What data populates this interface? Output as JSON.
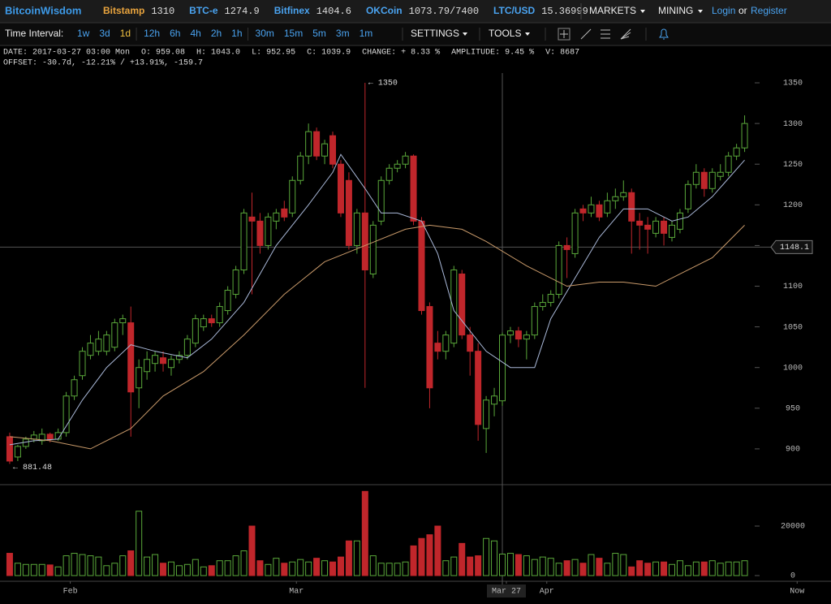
{
  "header": {
    "brand": "BitcoinWisdom",
    "tickers": [
      {
        "name": "Bitstamp",
        "price": "1310"
      },
      {
        "name": "BTC-e",
        "price": "1274.9"
      },
      {
        "name": "Bitfinex",
        "price": "1404.6"
      },
      {
        "name": "OKCoin",
        "price": "1073.79/7400"
      },
      {
        "name": "LTC/USD",
        "price": "15.36999"
      }
    ],
    "menus": [
      "MARKETS",
      "MINING"
    ],
    "login": "Login",
    "or": "or",
    "register": "Register"
  },
  "toolbar": {
    "label": "Time Interval:",
    "intervals": [
      "1w",
      "3d",
      "1d",
      "12h",
      "6h",
      "4h",
      "2h",
      "1h",
      "30m",
      "15m",
      "5m",
      "3m",
      "1m"
    ],
    "active": "1d",
    "settings": "SETTINGS",
    "tools": "TOOLS"
  },
  "info": {
    "line1": [
      "DATE: 2017-03-27 03:00 Mon",
      "O: 959.08",
      "H: 1043.0",
      "L: 952.95",
      "C: 1039.9",
      "CHANGE: + 8.33 %",
      "AMPLITUDE: 9.45 %",
      "V: 8687"
    ],
    "line2": "OFFSET: -30.7d, -12.21% / +13.91%, -159.7"
  },
  "chart_data": {
    "type": "candlestick",
    "up_color": "#5aa83a",
    "down_color": "#c0262b",
    "xlim": [
      -1.2,
      92.25
    ],
    "ylim": [
      856,
      1362
    ],
    "y2lim": [
      -2300,
      36400
    ],
    "xticks": [
      {
        "value": 7,
        "label": "Feb"
      },
      {
        "value": 35,
        "label": "Mar"
      },
      {
        "value": 61,
        "label": "Mar 27"
      },
      {
        "value": 66,
        "label": "Apr"
      },
      {
        "value": 97,
        "label": "Now"
      }
    ],
    "yticks": [
      900,
      950,
      1000,
      1050,
      1100,
      1150,
      1200,
      1250,
      1300,
      1350
    ],
    "y2ticks": [
      0,
      20000
    ],
    "ohlc": [
      [
        915,
        920,
        881.48,
        885
      ],
      [
        890,
        905,
        885,
        903
      ],
      [
        903,
        915,
        900,
        912
      ],
      [
        912,
        922,
        908,
        917
      ],
      [
        910,
        925,
        905,
        918
      ],
      [
        918,
        920,
        908,
        912
      ],
      [
        912,
        925,
        910,
        920
      ],
      [
        920,
        970,
        915,
        965
      ],
      [
        965,
        990,
        960,
        985
      ],
      [
        990,
        1025,
        985,
        1020
      ],
      [
        1015,
        1040,
        1010,
        1030
      ],
      [
        1020,
        1045,
        1015,
        1035
      ],
      [
        1020,
        1045,
        1015,
        1040
      ],
      [
        1025,
        1060,
        1020,
        1055
      ],
      [
        1055,
        1065,
        1040,
        1060
      ],
      [
        1055,
        1075,
        915,
        970
      ],
      [
        975,
        1010,
        950,
        1000
      ],
      [
        995,
        1020,
        985,
        1010
      ],
      [
        1005,
        1020,
        995,
        1015
      ],
      [
        1012,
        1020,
        995,
        1005
      ],
      [
        1000,
        1015,
        990,
        1010
      ],
      [
        1010,
        1020,
        1005,
        1015
      ],
      [
        1015,
        1040,
        1010,
        1035
      ],
      [
        1030,
        1065,
        1025,
        1060
      ],
      [
        1050,
        1065,
        1045,
        1060
      ],
      [
        1060,
        1065,
        1050,
        1055
      ],
      [
        1055,
        1080,
        1050,
        1075
      ],
      [
        1070,
        1100,
        1065,
        1095
      ],
      [
        1090,
        1125,
        1085,
        1120
      ],
      [
        1120,
        1195,
        1115,
        1190
      ],
      [
        1185,
        1215,
        1090,
        1180
      ],
      [
        1180,
        1190,
        1140,
        1150
      ],
      [
        1150,
        1190,
        1145,
        1185
      ],
      [
        1180,
        1195,
        1170,
        1190
      ],
      [
        1195,
        1205,
        1180,
        1185
      ],
      [
        1190,
        1235,
        1185,
        1230
      ],
      [
        1230,
        1265,
        1225,
        1260
      ],
      [
        1260,
        1300,
        1250,
        1290
      ],
      [
        1290,
        1295,
        1255,
        1260
      ],
      [
        1260,
        1280,
        1250,
        1275
      ],
      [
        1285,
        1290,
        1245,
        1250
      ],
      [
        1250,
        1255,
        1185,
        1190
      ],
      [
        1230,
        1240,
        1145,
        1150
      ],
      [
        1150,
        1195,
        1140,
        1190
      ],
      [
        1190,
        1350,
        975,
        1120
      ],
      [
        1115,
        1180,
        1110,
        1175
      ],
      [
        1180,
        1235,
        1175,
        1230
      ],
      [
        1230,
        1250,
        1225,
        1245
      ],
      [
        1245,
        1255,
        1240,
        1250
      ],
      [
        1250,
        1265,
        1245,
        1260
      ],
      [
        1260,
        1262,
        1175,
        1180
      ],
      [
        1180,
        1185,
        1065,
        1070
      ],
      [
        1075,
        1080,
        950,
        975
      ],
      [
        1030,
        1045,
        1010,
        1020
      ],
      [
        1020,
        1045,
        1010,
        1040
      ],
      [
        1030,
        1125,
        1025,
        1120
      ],
      [
        1115,
        1120,
        1035,
        1040
      ],
      [
        1040,
        1050,
        990,
        1020
      ],
      [
        1020,
        1030,
        910,
        930
      ],
      [
        925,
        965,
        895,
        960
      ],
      [
        955,
        975,
        940,
        965
      ],
      [
        959.08,
        1043.0,
        952.95,
        1039.9
      ],
      [
        1040,
        1050,
        1030,
        1045
      ],
      [
        1045,
        1050,
        1025,
        1035
      ],
      [
        1035,
        1045,
        1010,
        1040
      ],
      [
        1040,
        1080,
        1035,
        1075
      ],
      [
        1075,
        1090,
        1070,
        1080
      ],
      [
        1080,
        1095,
        1075,
        1090
      ],
      [
        1090,
        1155,
        1085,
        1150
      ],
      [
        1150,
        1160,
        1110,
        1145
      ],
      [
        1140,
        1195,
        1135,
        1190
      ],
      [
        1195,
        1200,
        1180,
        1190
      ],
      [
        1190,
        1210,
        1185,
        1200
      ],
      [
        1200,
        1205,
        1180,
        1185
      ],
      [
        1190,
        1215,
        1185,
        1205
      ],
      [
        1205,
        1220,
        1195,
        1210
      ],
      [
        1210,
        1230,
        1205,
        1215
      ],
      [
        1215,
        1220,
        1140,
        1180
      ],
      [
        1180,
        1190,
        1145,
        1175
      ],
      [
        1175,
        1185,
        1140,
        1170
      ],
      [
        1165,
        1185,
        1160,
        1180
      ],
      [
        1180,
        1185,
        1150,
        1165
      ],
      [
        1160,
        1180,
        1155,
        1175
      ],
      [
        1170,
        1195,
        1165,
        1190
      ],
      [
        1195,
        1230,
        1190,
        1225
      ],
      [
        1225,
        1250,
        1220,
        1240
      ],
      [
        1240,
        1245,
        1210,
        1220
      ],
      [
        1220,
        1245,
        1215,
        1240
      ],
      [
        1235,
        1250,
        1230,
        1240
      ],
      [
        1240,
        1265,
        1235,
        1260
      ],
      [
        1260,
        1275,
        1255,
        1270
      ],
      [
        1270,
        1310,
        1265,
        1300
      ]
    ],
    "volume": [
      9000,
      5000,
      4500,
      4500,
      4500,
      4300,
      3500,
      8000,
      9000,
      8500,
      8000,
      7500,
      4000,
      5000,
      8000,
      10000,
      26000,
      7500,
      8500,
      5000,
      5500,
      4000,
      4500,
      6500,
      3500,
      4000,
      6000,
      6000,
      8000,
      10000,
      20000,
      6000,
      4500,
      7000,
      5000,
      5500,
      6500,
      5500,
      7000,
      6000,
      5500,
      7500,
      14000,
      14000,
      34000,
      8000,
      5000,
      5000,
      5000,
      5500,
      12000,
      15000,
      16500,
      20000,
      6000,
      7500,
      13000,
      7500,
      8000,
      15000,
      14000,
      8687,
      9000,
      8500,
      8000,
      6500,
      7500,
      7000,
      5000,
      6000,
      6500,
      5000,
      8500,
      7000,
      5000,
      9000,
      8500,
      3500,
      6000,
      5000,
      5500,
      5500,
      4500,
      6000,
      4000,
      5500,
      5500,
      6000,
      5000,
      5500,
      5500,
      6000
    ],
    "ma_lines": [
      {
        "color": "#a9b8d8",
        "x": [
          0,
          3,
          6,
          9,
          12,
          15,
          18,
          22,
          25,
          29,
          33,
          37,
          40,
          41,
          44,
          46,
          48,
          51,
          53,
          55,
          57,
          59,
          62,
          65,
          67,
          70,
          73,
          76,
          79,
          82,
          84,
          87,
          91
        ],
        "values": [
          905,
          910,
          912,
          960,
          1000,
          1028,
          1020,
          1012,
          1035,
          1080,
          1150,
          1200,
          1240,
          1262,
          1220,
          1190,
          1190,
          1180,
          1140,
          1070,
          1045,
          1020,
          1000,
          1000,
          1060,
          1110,
          1160,
          1195,
          1195,
          1180,
          1185,
          1210,
          1255
        ]
      },
      {
        "color": "#c99a6a",
        "x": [
          0,
          5,
          10,
          15,
          19,
          24,
          29,
          34,
          39,
          44,
          49,
          52,
          56,
          59,
          64,
          69,
          73,
          76,
          80,
          83,
          87,
          91
        ],
        "values": [
          915,
          910,
          900,
          925,
          965,
          995,
          1040,
          1090,
          1130,
          1150,
          1170,
          1175,
          1170,
          1155,
          1125,
          1100,
          1105,
          1105,
          1100,
          1115,
          1135,
          1175
        ]
      }
    ],
    "annotations": [
      {
        "x": 44,
        "value": 1350,
        "label": "← 1350"
      },
      {
        "x": 0,
        "value": 881.48,
        "label": "← 881.48"
      }
    ],
    "crosshair": {
      "x": 61,
      "y": 1148.1
    }
  }
}
